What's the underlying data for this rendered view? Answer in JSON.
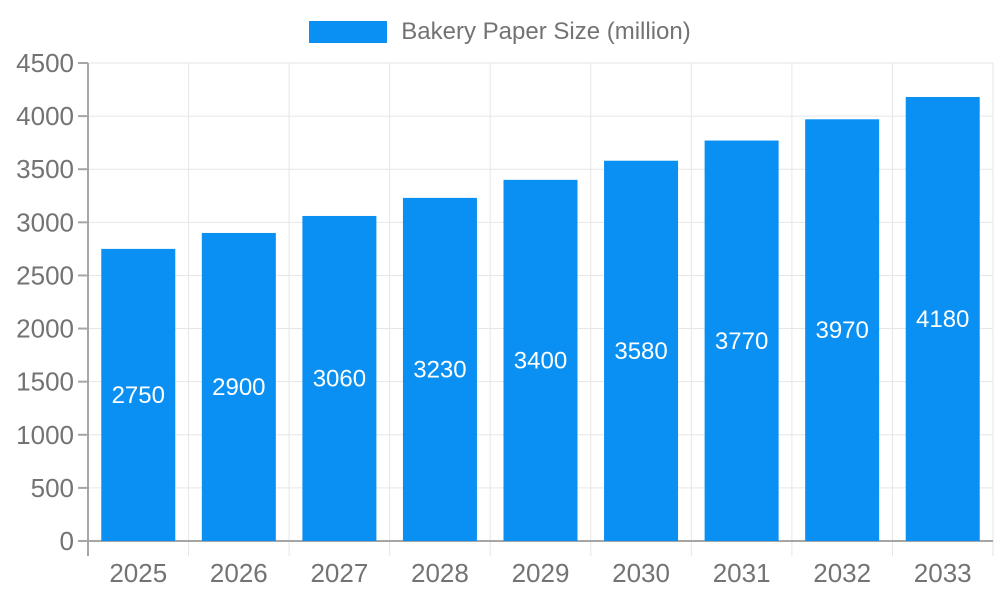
{
  "chart_data": {
    "type": "bar",
    "title": "Bakery Paper Size (million)",
    "series_name": "Bakery Paper Size (million)",
    "categories": [
      "2025",
      "2026",
      "2027",
      "2028",
      "2029",
      "2030",
      "2031",
      "2032",
      "2033"
    ],
    "values": [
      2750,
      2900,
      3060,
      3230,
      3400,
      3580,
      3770,
      3970,
      4180
    ],
    "xlabel": "",
    "ylabel": "",
    "ylim": [
      0,
      4500
    ],
    "ytick_step": 500,
    "yticks": [
      0,
      500,
      1000,
      1500,
      2000,
      2500,
      3000,
      3500,
      4000,
      4500
    ],
    "grid": true,
    "legend_position": "top-center",
    "value_label_position": "inside-middle",
    "colors": {
      "bar": "#0990f2",
      "bar_value_label": "#ffffff",
      "axis_text": "#737373",
      "grid_line": "#e6e6e6",
      "axis_line": "#a6a6a6",
      "background": "#ffffff"
    }
  }
}
